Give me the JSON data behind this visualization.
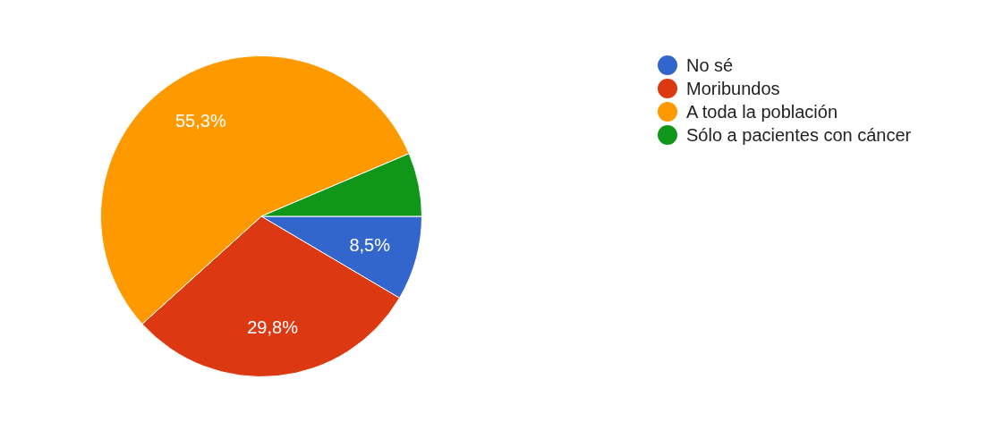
{
  "chart_data": {
    "type": "pie",
    "categories": [
      "No sé",
      "Moribundos",
      "A toda la población",
      "Sólo a pacientes con cáncer"
    ],
    "values": [
      8.5,
      29.8,
      55.3,
      6.4
    ],
    "colors": [
      "#3366cc",
      "#dc3912",
      "#ff9900",
      "#109618"
    ],
    "value_labels": [
      "8,5%",
      "29,8%",
      "55,3%",
      null
    ],
    "legend": "right"
  }
}
